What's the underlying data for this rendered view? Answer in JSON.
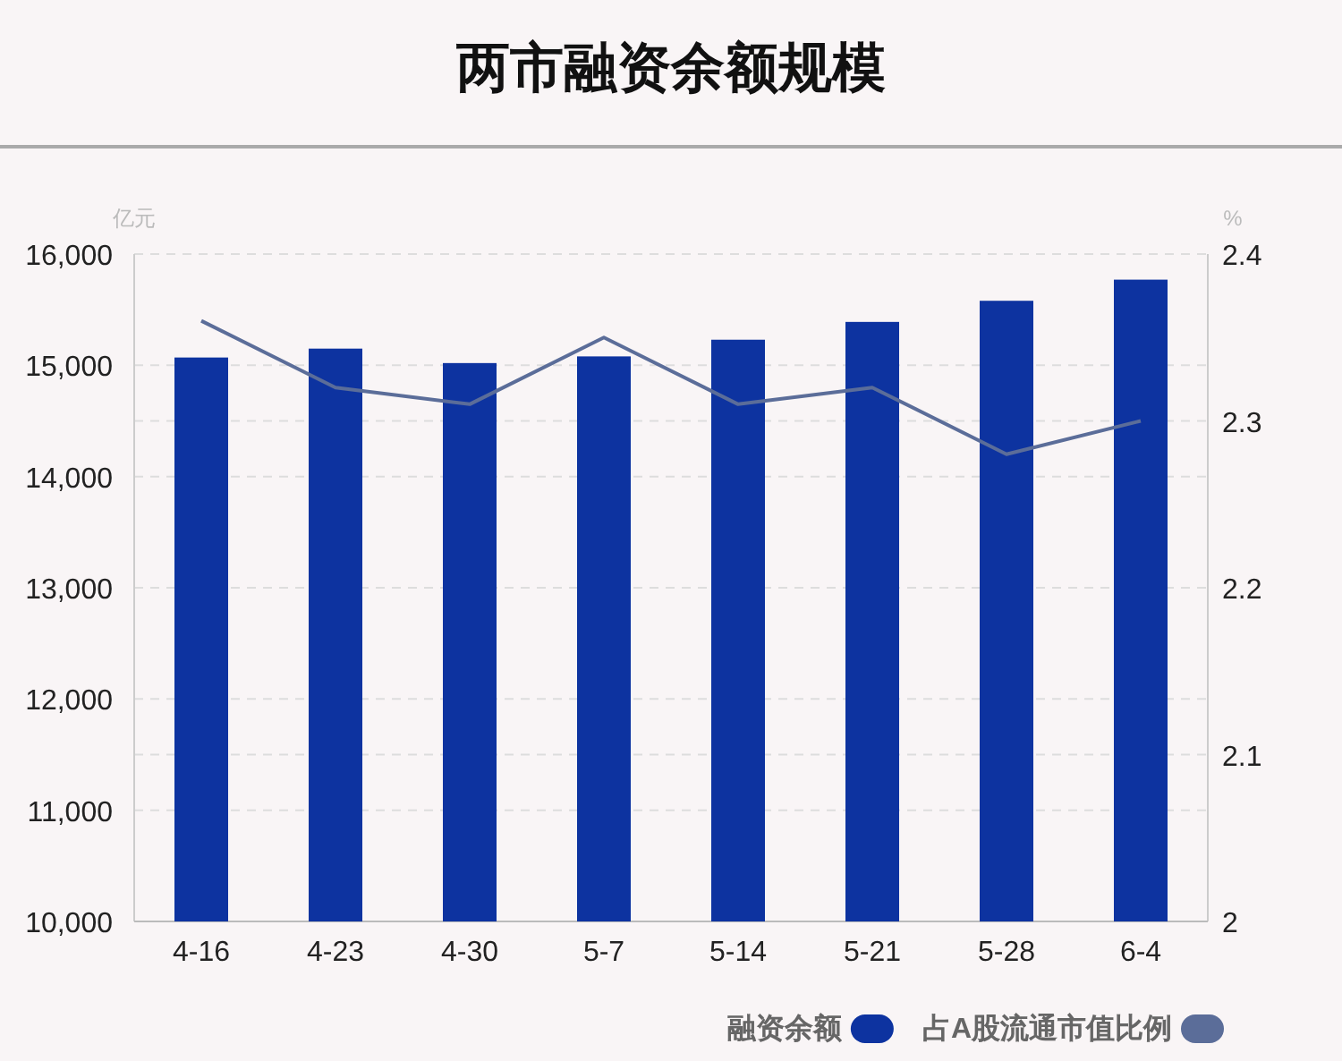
{
  "chart_data": {
    "type": "bar",
    "title": "两市融资余额规模",
    "ylabel": "亿元",
    "y2label": "%",
    "categories": [
      "4-16",
      "4-23",
      "4-30",
      "5-7",
      "5-14",
      "5-21",
      "5-28",
      "6-4"
    ],
    "series": [
      {
        "name": "融资余额",
        "color": "#0d33a0",
        "values": [
          15070,
          15150,
          15020,
          15080,
          15230,
          15390,
          15580,
          15770
        ]
      },
      {
        "name": "占A股流通市值比例",
        "type": "line",
        "axis": "y2",
        "color": "#5b6d99",
        "values": [
          2.36,
          2.32,
          2.31,
          2.35,
          2.31,
          2.32,
          2.28,
          2.3
        ]
      }
    ],
    "ylim": [
      10000,
      16000
    ],
    "yticks": [
      {
        "value": 10000,
        "label": "10,000"
      },
      {
        "value": 11000,
        "label": "11,000"
      },
      {
        "value": 12000,
        "label": "12,000"
      },
      {
        "value": 13000,
        "label": "13,000"
      },
      {
        "value": 14000,
        "label": "14,000"
      },
      {
        "value": 15000,
        "label": "15,000"
      },
      {
        "value": 16000,
        "label": "16,000"
      }
    ],
    "y2lim": [
      2,
      2.4
    ],
    "y2ticks": [
      2,
      2.1,
      2.2,
      2.3,
      2.4
    ],
    "grid": true,
    "legend": "bottom right",
    "marker": "none"
  }
}
